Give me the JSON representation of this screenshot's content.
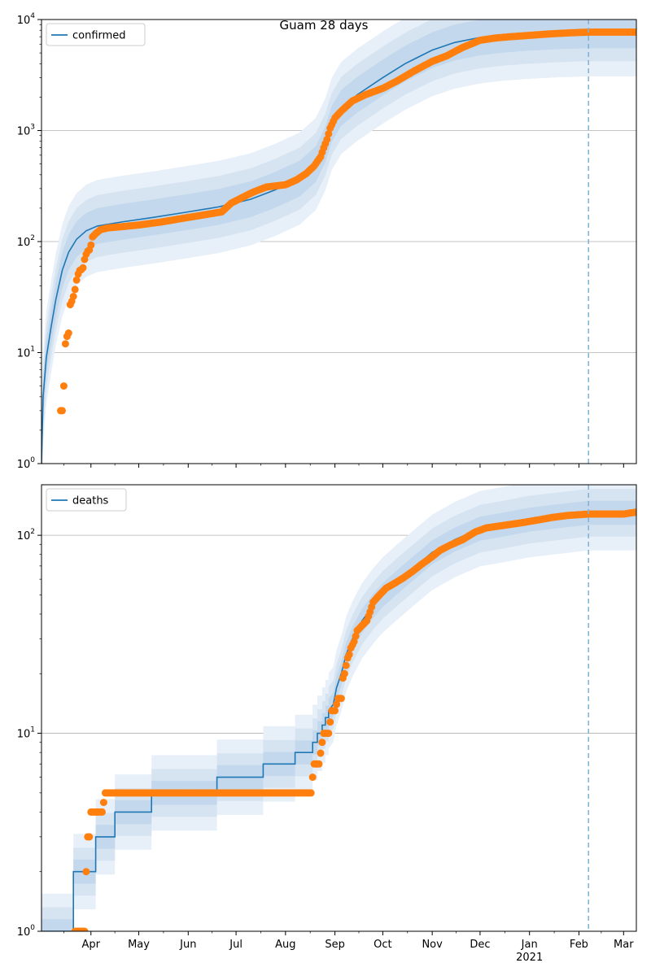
{
  "figure_title": "Guam 28 days",
  "chart_data": [
    {
      "type": "line",
      "subplot": "confirmed",
      "scale": "log",
      "ylim": [
        1,
        10000
      ],
      "x_range": [
        "2020-03-01",
        "2021-03-09"
      ],
      "grid": "horizontal",
      "legend": {
        "position": "top-left",
        "entries": [
          "confirmed"
        ]
      },
      "y_ticks": [
        {
          "value": 1,
          "base": "10",
          "exp": "0"
        },
        {
          "value": 10,
          "base": "10",
          "exp": "1"
        },
        {
          "value": 100,
          "base": "10",
          "exp": "2"
        },
        {
          "value": 1000,
          "base": "10",
          "exp": "3"
        },
        {
          "value": 10000,
          "base": "10",
          "exp": "4"
        }
      ],
      "forecast_start": "2021-02-07",
      "model": {
        "name": "confirmed",
        "color": "#1f77b4",
        "points": [
          [
            "2020-03-01",
            1
          ],
          [
            "2020-03-02",
            4
          ],
          [
            "2020-03-04",
            9
          ],
          [
            "2020-03-07",
            17
          ],
          [
            "2020-03-10",
            30
          ],
          [
            "2020-03-14",
            55
          ],
          [
            "2020-03-18",
            80
          ],
          [
            "2020-03-23",
            105
          ],
          [
            "2020-03-29",
            125
          ],
          [
            "2020-04-05",
            138
          ],
          [
            "2020-04-20",
            150
          ],
          [
            "2020-05-10",
            165
          ],
          [
            "2020-06-01",
            185
          ],
          [
            "2020-06-20",
            205
          ],
          [
            "2020-07-10",
            240
          ],
          [
            "2020-07-25",
            290
          ],
          [
            "2020-08-10",
            370
          ],
          [
            "2020-08-20",
            500
          ],
          [
            "2020-08-26",
            750
          ],
          [
            "2020-08-30",
            1150
          ],
          [
            "2020-09-05",
            1600
          ],
          [
            "2020-09-15",
            2100
          ],
          [
            "2020-10-01",
            3000
          ],
          [
            "2020-10-15",
            4000
          ],
          [
            "2020-11-01",
            5300
          ],
          [
            "2020-11-15",
            6200
          ],
          [
            "2020-12-01",
            6900
          ],
          [
            "2020-12-15",
            7300
          ],
          [
            "2021-01-01",
            7600
          ],
          [
            "2021-01-20",
            7850
          ],
          [
            "2021-02-07",
            8000
          ]
        ]
      },
      "band_spreads": [
        2.6,
        1.9,
        1.45
      ],
      "observed": {
        "color": "#ff7f0e",
        "points": [
          [
            "2020-03-13",
            3
          ],
          [
            "2020-03-14",
            3
          ],
          [
            "2020-03-15",
            5
          ],
          [
            "2020-03-16",
            12
          ],
          [
            "2020-03-17",
            14
          ],
          [
            "2020-03-18",
            15
          ],
          [
            "2020-03-19",
            27
          ],
          [
            "2020-03-20",
            29
          ],
          [
            "2020-03-21",
            32
          ],
          [
            "2020-03-22",
            37
          ],
          [
            "2020-03-23",
            45
          ],
          [
            "2020-03-24",
            51
          ],
          [
            "2020-03-25",
            55
          ],
          [
            "2020-03-26",
            56
          ],
          [
            "2020-03-27",
            58
          ],
          [
            "2020-03-28",
            69
          ],
          [
            "2020-03-29",
            77
          ],
          [
            "2020-03-30",
            82
          ],
          [
            "2020-03-31",
            84
          ],
          [
            "2020-04-01",
            93
          ],
          [
            "2020-04-02",
            110
          ],
          [
            "2020-04-04",
            118
          ],
          [
            "2020-04-07",
            128
          ],
          [
            "2020-04-12",
            133
          ],
          [
            "2020-04-20",
            136
          ],
          [
            "2020-05-01",
            141
          ],
          [
            "2020-05-15",
            150
          ],
          [
            "2020-06-01",
            165
          ],
          [
            "2020-06-15",
            178
          ],
          [
            "2020-06-22",
            185
          ],
          [
            "2020-06-28",
            222
          ],
          [
            "2020-07-05",
            250
          ],
          [
            "2020-07-12",
            280
          ],
          [
            "2020-07-20",
            310
          ],
          [
            "2020-08-01",
            325
          ],
          [
            "2020-08-08",
            360
          ],
          [
            "2020-08-14",
            410
          ],
          [
            "2020-08-19",
            480
          ],
          [
            "2020-08-23",
            580
          ],
          [
            "2020-08-25",
            700
          ],
          [
            "2020-08-27",
            830
          ],
          [
            "2020-08-29",
            1050
          ],
          [
            "2020-09-01",
            1300
          ],
          [
            "2020-09-05",
            1500
          ],
          [
            "2020-09-12",
            1850
          ],
          [
            "2020-09-20",
            2100
          ],
          [
            "2020-10-01",
            2400
          ],
          [
            "2020-10-10",
            2800
          ],
          [
            "2020-10-20",
            3400
          ],
          [
            "2020-11-01",
            4200
          ],
          [
            "2020-11-10",
            4700
          ],
          [
            "2020-11-20",
            5600
          ],
          [
            "2020-12-01",
            6500
          ],
          [
            "2020-12-10",
            6800
          ],
          [
            "2020-12-20",
            7000
          ],
          [
            "2021-01-01",
            7200
          ],
          [
            "2021-01-15",
            7450
          ],
          [
            "2021-02-01",
            7650
          ],
          [
            "2021-02-07",
            7700
          ],
          [
            "2021-03-09",
            7700
          ]
        ]
      }
    },
    {
      "type": "line",
      "subplot": "deaths",
      "scale": "log",
      "ylim": [
        1,
        180
      ],
      "x_range": [
        "2020-03-01",
        "2021-03-09"
      ],
      "grid": "horizontal",
      "legend": {
        "position": "top-left",
        "entries": [
          "deaths"
        ]
      },
      "y_ticks": [
        {
          "value": 1,
          "base": "10",
          "exp": "0"
        },
        {
          "value": 10,
          "base": "10",
          "exp": "1"
        },
        {
          "value": 100,
          "base": "10",
          "exp": "2"
        }
      ],
      "x_ticks": [
        {
          "date": "2020-04-01",
          "label": "Apr",
          "sublabel": ""
        },
        {
          "date": "2020-05-01",
          "label": "May",
          "sublabel": ""
        },
        {
          "date": "2020-06-01",
          "label": "Jun",
          "sublabel": ""
        },
        {
          "date": "2020-07-01",
          "label": "Jul",
          "sublabel": ""
        },
        {
          "date": "2020-08-01",
          "label": "Aug",
          "sublabel": ""
        },
        {
          "date": "2020-09-01",
          "label": "Sep",
          "sublabel": ""
        },
        {
          "date": "2020-10-01",
          "label": "Oct",
          "sublabel": ""
        },
        {
          "date": "2020-11-01",
          "label": "Nov",
          "sublabel": ""
        },
        {
          "date": "2020-12-01",
          "label": "Dec",
          "sublabel": ""
        },
        {
          "date": "2021-01-01",
          "label": "Jan",
          "sublabel": "2021"
        },
        {
          "date": "2021-02-01",
          "label": "Feb",
          "sublabel": ""
        },
        {
          "date": "2021-03-01",
          "label": "Mar",
          "sublabel": ""
        }
      ],
      "forecast_start": "2021-02-07",
      "model": {
        "name": "deaths",
        "color": "#1f77b4",
        "step": true,
        "points": [
          [
            "2020-03-01",
            1
          ],
          [
            "2020-03-21",
            1
          ],
          [
            "2020-03-21",
            2
          ],
          [
            "2020-04-04",
            2
          ],
          [
            "2020-04-04",
            3
          ],
          [
            "2020-04-16",
            3
          ],
          [
            "2020-04-16",
            4
          ],
          [
            "2020-05-09",
            4
          ],
          [
            "2020-05-09",
            5
          ],
          [
            "2020-06-19",
            5
          ],
          [
            "2020-06-19",
            6
          ],
          [
            "2020-07-18",
            6
          ],
          [
            "2020-07-18",
            7
          ],
          [
            "2020-08-07",
            7
          ],
          [
            "2020-08-07",
            8
          ],
          [
            "2020-08-18",
            8
          ],
          [
            "2020-08-18",
            9
          ],
          [
            "2020-08-21",
            9
          ],
          [
            "2020-08-21",
            10
          ],
          [
            "2020-08-24",
            10
          ],
          [
            "2020-08-24",
            11
          ],
          [
            "2020-08-26",
            11
          ],
          [
            "2020-08-26",
            12
          ],
          [
            "2020-08-28",
            12
          ],
          [
            "2020-08-28",
            13
          ],
          [
            "2020-08-31",
            14
          ],
          [
            "2020-09-02",
            17
          ],
          [
            "2020-09-05",
            20
          ],
          [
            "2020-09-08",
            25
          ],
          [
            "2020-09-12",
            30
          ],
          [
            "2020-09-18",
            37
          ],
          [
            "2020-09-25",
            44
          ],
          [
            "2020-10-01",
            50
          ],
          [
            "2020-10-10",
            58
          ],
          [
            "2020-10-20",
            68
          ],
          [
            "2020-11-01",
            82
          ],
          [
            "2020-11-15",
            95
          ],
          [
            "2020-12-01",
            108
          ],
          [
            "2020-12-15",
            113
          ],
          [
            "2021-01-01",
            120
          ],
          [
            "2021-01-20",
            125
          ],
          [
            "2021-02-07",
            130
          ]
        ]
      },
      "band_spreads": [
        1.55,
        1.32,
        1.15
      ],
      "observed": {
        "color": "#ff7f0e",
        "points": [
          [
            "2020-03-22",
            1
          ],
          [
            "2020-03-24",
            1
          ],
          [
            "2020-03-26",
            1
          ],
          [
            "2020-03-28",
            1
          ],
          [
            "2020-03-29",
            2
          ],
          [
            "2020-03-30",
            3
          ],
          [
            "2020-03-31",
            3
          ],
          [
            "2020-04-01",
            4
          ],
          [
            "2020-04-04",
            4
          ],
          [
            "2020-04-08",
            4
          ],
          [
            "2020-04-10",
            5
          ],
          [
            "2020-05-01",
            5
          ],
          [
            "2020-06-01",
            5
          ],
          [
            "2020-07-01",
            5
          ],
          [
            "2020-08-01",
            5
          ],
          [
            "2020-08-17",
            5
          ],
          [
            "2020-08-18",
            6
          ],
          [
            "2020-08-19",
            7
          ],
          [
            "2020-08-22",
            7
          ],
          [
            "2020-08-24",
            9
          ],
          [
            "2020-08-25",
            10
          ],
          [
            "2020-08-28",
            10
          ],
          [
            "2020-08-30",
            13
          ],
          [
            "2020-09-01",
            13
          ],
          [
            "2020-09-02",
            14
          ],
          [
            "2020-09-03",
            15
          ],
          [
            "2020-09-05",
            15
          ],
          [
            "2020-09-06",
            19
          ],
          [
            "2020-09-07",
            20
          ],
          [
            "2020-09-08",
            22
          ],
          [
            "2020-09-09",
            24
          ],
          [
            "2020-09-10",
            25
          ],
          [
            "2020-09-11",
            27
          ],
          [
            "2020-09-13",
            29
          ],
          [
            "2020-09-15",
            33
          ],
          [
            "2020-09-18",
            35
          ],
          [
            "2020-09-21",
            37
          ],
          [
            "2020-09-23",
            41
          ],
          [
            "2020-09-25",
            46
          ],
          [
            "2020-09-28",
            49
          ],
          [
            "2020-10-03",
            54
          ],
          [
            "2020-10-08",
            57
          ],
          [
            "2020-10-14",
            61
          ],
          [
            "2020-10-20",
            66
          ],
          [
            "2020-10-25",
            71
          ],
          [
            "2020-11-01",
            78
          ],
          [
            "2020-11-06",
            84
          ],
          [
            "2020-11-12",
            89
          ],
          [
            "2020-11-20",
            95
          ],
          [
            "2020-11-28",
            104
          ],
          [
            "2020-12-05",
            109
          ],
          [
            "2020-12-15",
            112
          ],
          [
            "2020-12-25",
            115
          ],
          [
            "2021-01-05",
            119
          ],
          [
            "2021-01-15",
            123
          ],
          [
            "2021-01-25",
            126
          ],
          [
            "2021-02-07",
            128
          ],
          [
            "2021-02-20",
            128
          ],
          [
            "2021-03-01",
            128
          ],
          [
            "2021-03-09",
            131
          ]
        ]
      }
    }
  ]
}
